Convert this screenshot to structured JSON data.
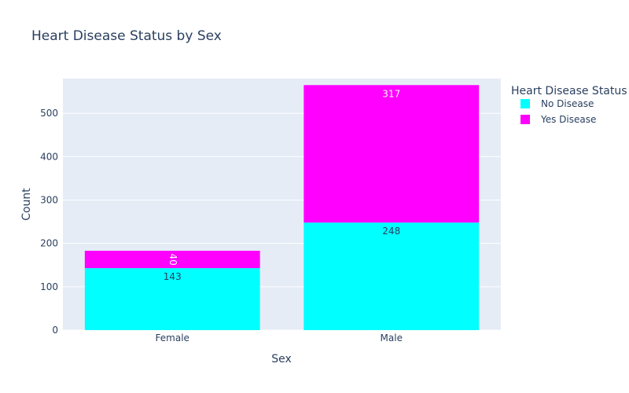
{
  "chart_data": {
    "type": "bar",
    "stacked": true,
    "title": "Heart Disease Status by Sex",
    "xlabel": "Sex",
    "ylabel": "Count",
    "categories": [
      "Female",
      "Male"
    ],
    "ylim": [
      0,
      580
    ],
    "yticks": [
      0,
      100,
      200,
      300,
      400,
      500
    ],
    "grid": true,
    "legend_title": "Heart Disease Status",
    "legend_position": "top-right",
    "series": [
      {
        "name": "No Disease",
        "color": "#00ffff",
        "values": [
          143,
          248
        ],
        "label_color": "#2a3f5f"
      },
      {
        "name": "Yes Disease",
        "color": "#ff00ff",
        "values": [
          40,
          317
        ],
        "label_color": "#ffffff"
      }
    ]
  },
  "colors": {
    "plot_background": "#e5ecf6",
    "gridline": "#ffffff",
    "text": "#2a3f5f"
  }
}
